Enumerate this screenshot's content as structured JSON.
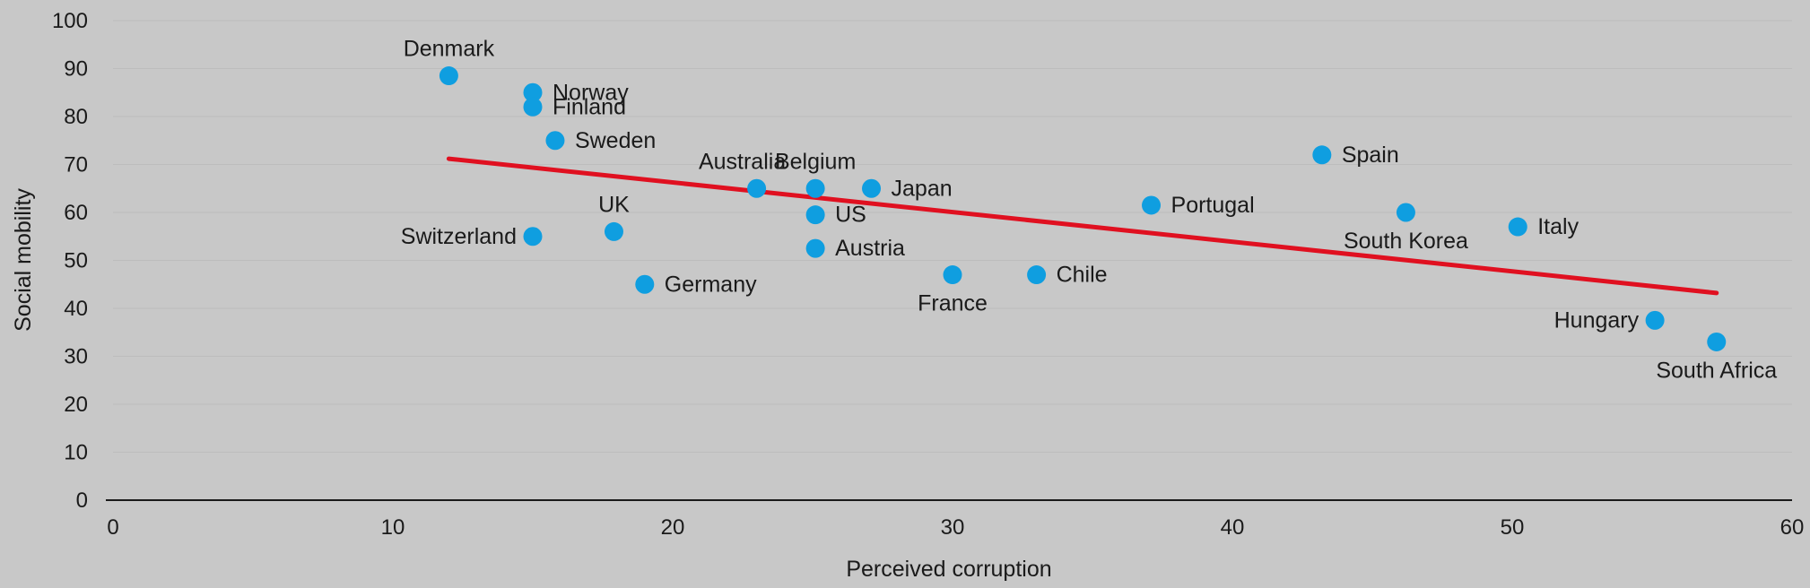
{
  "chart_data": {
    "type": "scatter",
    "xlabel": "Perceived corruption",
    "ylabel": "Social mobility",
    "xlim": [
      0,
      60
    ],
    "ylim": [
      0,
      100
    ],
    "x_ticks": [
      "0",
      "10",
      "20",
      "30",
      "40",
      "50",
      "60"
    ],
    "y_ticks": [
      "0",
      "10",
      "20",
      "30",
      "40",
      "50",
      "60",
      "70",
      "80",
      "90",
      "100"
    ],
    "grid": true,
    "point_color": "#0f9ee0",
    "trend_color": "#e01020",
    "points": [
      {
        "label": "Denmark",
        "x": 12,
        "y": 88.5,
        "pos": "above"
      },
      {
        "label": "Norway",
        "x": 15,
        "y": 85,
        "pos": "right"
      },
      {
        "label": "Finland",
        "x": 15,
        "y": 82,
        "pos": "right"
      },
      {
        "label": "Sweden",
        "x": 15.8,
        "y": 75,
        "pos": "right"
      },
      {
        "label": "Switzerland",
        "x": 15,
        "y": 55,
        "pos": "left"
      },
      {
        "label": "UK",
        "x": 17.9,
        "y": 56,
        "pos": "above"
      },
      {
        "label": "Germany",
        "x": 19,
        "y": 45,
        "pos": "right"
      },
      {
        "label": "Australia",
        "x": 23,
        "y": 65,
        "pos": "aboveleft"
      },
      {
        "label": "Belgium",
        "x": 25.1,
        "y": 65,
        "pos": "above"
      },
      {
        "label": "US",
        "x": 25.1,
        "y": 59.5,
        "pos": "right"
      },
      {
        "label": "Austria",
        "x": 25.1,
        "y": 52.5,
        "pos": "right"
      },
      {
        "label": "Japan",
        "x": 27.1,
        "y": 65,
        "pos": "right"
      },
      {
        "label": "France",
        "x": 30,
        "y": 47,
        "pos": "below"
      },
      {
        "label": "Chile",
        "x": 33,
        "y": 47,
        "pos": "right"
      },
      {
        "label": "Portugal",
        "x": 37.1,
        "y": 61.5,
        "pos": "right"
      },
      {
        "label": "Spain",
        "x": 43.2,
        "y": 72,
        "pos": "right"
      },
      {
        "label": "South Korea",
        "x": 46.2,
        "y": 60,
        "pos": "below"
      },
      {
        "label": "Italy",
        "x": 50.2,
        "y": 57,
        "pos": "right"
      },
      {
        "label": "Hungary",
        "x": 55.1,
        "y": 37.5,
        "pos": "left"
      },
      {
        "label": "South Africa",
        "x": 57.3,
        "y": 33,
        "pos": "below"
      }
    ],
    "trend_line": {
      "x": [
        12,
        57.3
      ],
      "y": [
        71.2,
        43.2
      ]
    }
  }
}
